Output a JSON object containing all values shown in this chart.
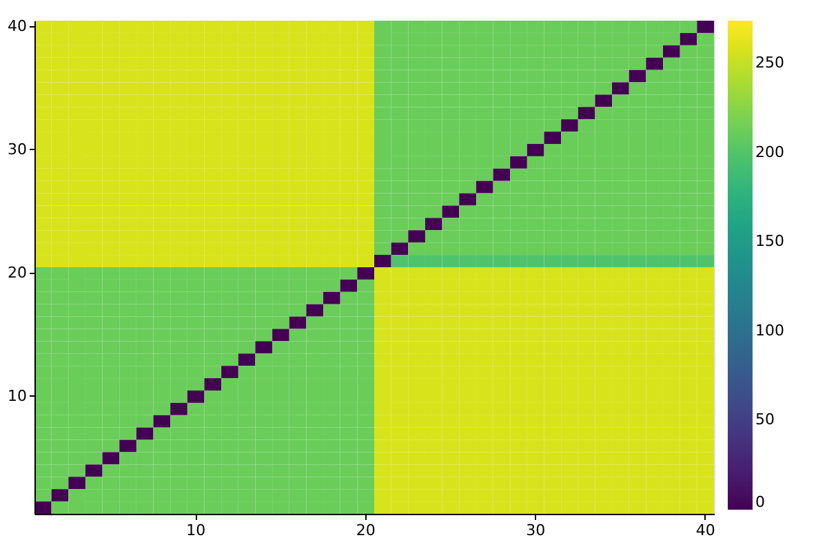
{
  "chart_data": {
    "type": "heatmap",
    "categories": [
      null,
      null,
      null,
      null,
      null,
      null,
      null,
      null,
      null,
      "10",
      null,
      null,
      null,
      null,
      null,
      null,
      null,
      null,
      null,
      "20",
      null,
      null,
      null,
      null,
      null,
      null,
      null,
      null,
      null,
      "30",
      null,
      null,
      null,
      null,
      null,
      null,
      null,
      null,
      null,
      "40"
    ],
    "y_categories": [
      "40",
      null,
      null,
      null,
      null,
      null,
      null,
      null,
      null,
      null,
      "30",
      null,
      null,
      null,
      null,
      null,
      null,
      null,
      null,
      null,
      "20",
      null,
      null,
      null,
      null,
      null,
      null,
      null,
      null,
      null,
      "10",
      null,
      null,
      null,
      null,
      null,
      null,
      null,
      null,
      null
    ],
    "clim": [
      0,
      274
    ],
    "cticks": [
      0,
      50,
      100,
      150,
      200,
      250
    ],
    "cells": [
      [
        258,
        258,
        258,
        258,
        258,
        258,
        258,
        258,
        258,
        258,
        258,
        258,
        258,
        258,
        258,
        258,
        258,
        258,
        258,
        258,
        212,
        212,
        212,
        212,
        212,
        212,
        212,
        212,
        212,
        212,
        212,
        212,
        212,
        212,
        212,
        212,
        212,
        212,
        212,
        0
      ],
      [
        258,
        258,
        258,
        258,
        258,
        258,
        258,
        258,
        258,
        258,
        258,
        258,
        258,
        258,
        258,
        258,
        258,
        258,
        258,
        258,
        212,
        212,
        212,
        212,
        212,
        212,
        212,
        212,
        212,
        212,
        212,
        212,
        212,
        212,
        212,
        212,
        212,
        212,
        0,
        212
      ],
      [
        258,
        258,
        258,
        258,
        258,
        258,
        258,
        258,
        258,
        258,
        258,
        258,
        258,
        258,
        258,
        258,
        258,
        258,
        258,
        258,
        212,
        212,
        212,
        212,
        212,
        212,
        212,
        212,
        212,
        212,
        212,
        212,
        212,
        212,
        212,
        212,
        212,
        0,
        212,
        212
      ],
      [
        258,
        258,
        258,
        258,
        258,
        258,
        258,
        258,
        258,
        258,
        258,
        258,
        258,
        258,
        258,
        258,
        258,
        258,
        258,
        258,
        212,
        212,
        212,
        212,
        212,
        212,
        212,
        212,
        212,
        212,
        212,
        212,
        212,
        212,
        212,
        212,
        0,
        212,
        212,
        212
      ],
      [
        258,
        258,
        258,
        258,
        258,
        258,
        258,
        258,
        258,
        258,
        258,
        258,
        258,
        258,
        258,
        258,
        258,
        258,
        258,
        258,
        212,
        212,
        212,
        212,
        212,
        212,
        212,
        212,
        212,
        212,
        212,
        212,
        212,
        212,
        212,
        0,
        212,
        212,
        212,
        212
      ],
      [
        258,
        258,
        258,
        258,
        258,
        258,
        258,
        258,
        258,
        258,
        258,
        258,
        258,
        258,
        258,
        258,
        258,
        258,
        258,
        258,
        212,
        212,
        212,
        212,
        212,
        212,
        212,
        212,
        212,
        212,
        212,
        212,
        212,
        212,
        0,
        212,
        212,
        212,
        212,
        212
      ],
      [
        258,
        258,
        258,
        258,
        258,
        258,
        258,
        258,
        258,
        258,
        258,
        258,
        258,
        258,
        258,
        258,
        258,
        258,
        258,
        258,
        212,
        212,
        212,
        212,
        212,
        212,
        212,
        212,
        212,
        212,
        212,
        212,
        212,
        0,
        212,
        212,
        212,
        212,
        212,
        212
      ],
      [
        258,
        258,
        258,
        258,
        258,
        258,
        258,
        258,
        258,
        258,
        258,
        258,
        258,
        258,
        258,
        258,
        258,
        258,
        258,
        258,
        212,
        212,
        212,
        212,
        212,
        212,
        212,
        212,
        212,
        212,
        212,
        212,
        0,
        212,
        212,
        212,
        212,
        212,
        212,
        212
      ],
      [
        258,
        258,
        258,
        258,
        258,
        258,
        258,
        258,
        258,
        258,
        258,
        258,
        258,
        258,
        258,
        258,
        258,
        258,
        258,
        258,
        212,
        212,
        212,
        212,
        212,
        212,
        212,
        212,
        212,
        212,
        212,
        0,
        212,
        212,
        212,
        212,
        212,
        212,
        212,
        212
      ],
      [
        258,
        258,
        258,
        258,
        258,
        258,
        258,
        258,
        258,
        258,
        258,
        258,
        258,
        258,
        258,
        258,
        258,
        258,
        258,
        258,
        212,
        212,
        212,
        212,
        212,
        212,
        212,
        212,
        212,
        212,
        0,
        212,
        212,
        212,
        212,
        212,
        212,
        212,
        212,
        212
      ],
      [
        258,
        258,
        258,
        258,
        258,
        258,
        258,
        258,
        258,
        258,
        258,
        258,
        258,
        258,
        258,
        258,
        258,
        258,
        258,
        258,
        212,
        212,
        212,
        212,
        212,
        212,
        212,
        212,
        212,
        0,
        212,
        212,
        212,
        212,
        212,
        212,
        212,
        212,
        212,
        212
      ],
      [
        258,
        258,
        258,
        258,
        258,
        258,
        258,
        258,
        258,
        258,
        258,
        258,
        258,
        258,
        258,
        258,
        258,
        258,
        258,
        258,
        212,
        212,
        212,
        212,
        212,
        212,
        212,
        212,
        0,
        212,
        212,
        212,
        212,
        212,
        212,
        212,
        212,
        212,
        212,
        212
      ],
      [
        258,
        258,
        258,
        258,
        258,
        258,
        258,
        258,
        258,
        258,
        258,
        258,
        258,
        258,
        258,
        258,
        258,
        258,
        258,
        258,
        212,
        212,
        212,
        212,
        212,
        212,
        212,
        0,
        212,
        212,
        212,
        212,
        212,
        212,
        212,
        212,
        212,
        212,
        212,
        212
      ],
      [
        258,
        258,
        258,
        258,
        258,
        258,
        258,
        258,
        258,
        258,
        258,
        258,
        258,
        258,
        258,
        258,
        258,
        258,
        258,
        258,
        212,
        212,
        212,
        212,
        212,
        212,
        0,
        212,
        212,
        212,
        212,
        212,
        212,
        212,
        212,
        212,
        212,
        212,
        212,
        212
      ],
      [
        258,
        258,
        258,
        258,
        258,
        258,
        258,
        258,
        258,
        258,
        258,
        258,
        258,
        258,
        258,
        258,
        258,
        258,
        258,
        258,
        212,
        212,
        212,
        212,
        212,
        0,
        212,
        212,
        212,
        212,
        212,
        212,
        212,
        212,
        212,
        212,
        212,
        212,
        212,
        212
      ],
      [
        258,
        258,
        258,
        258,
        258,
        258,
        258,
        258,
        258,
        258,
        258,
        258,
        258,
        258,
        258,
        258,
        258,
        258,
        258,
        258,
        212,
        212,
        212,
        212,
        0,
        212,
        212,
        212,
        212,
        212,
        212,
        212,
        212,
        212,
        212,
        212,
        212,
        212,
        212,
        212
      ],
      [
        258,
        258,
        258,
        258,
        258,
        258,
        258,
        258,
        258,
        258,
        258,
        258,
        258,
        258,
        258,
        258,
        258,
        258,
        258,
        258,
        212,
        212,
        212,
        0,
        212,
        212,
        212,
        212,
        212,
        212,
        212,
        212,
        212,
        212,
        212,
        212,
        212,
        212,
        212,
        212
      ],
      [
        258,
        258,
        258,
        258,
        258,
        258,
        258,
        258,
        258,
        258,
        258,
        258,
        258,
        258,
        258,
        258,
        258,
        258,
        258,
        258,
        212,
        212,
        0,
        212,
        212,
        212,
        212,
        212,
        212,
        212,
        212,
        212,
        212,
        212,
        212,
        212,
        212,
        212,
        212,
        212
      ],
      [
        258,
        258,
        258,
        258,
        258,
        258,
        258,
        258,
        258,
        258,
        258,
        258,
        258,
        258,
        258,
        258,
        258,
        258,
        258,
        258,
        212,
        0,
        212,
        212,
        212,
        212,
        212,
        212,
        212,
        212,
        212,
        212,
        212,
        212,
        212,
        212,
        212,
        212,
        212,
        212
      ],
      [
        258,
        258,
        258,
        258,
        258,
        258,
        258,
        258,
        258,
        258,
        258,
        258,
        258,
        258,
        258,
        258,
        258,
        258,
        258,
        258,
        0,
        198,
        198,
        198,
        198,
        198,
        198,
        198,
        198,
        198,
        198,
        198,
        198,
        198,
        198,
        198,
        198,
        198,
        198,
        198
      ],
      [
        212,
        212,
        212,
        212,
        212,
        212,
        212,
        212,
        212,
        212,
        212,
        212,
        212,
        212,
        212,
        212,
        212,
        212,
        212,
        0,
        258,
        258,
        258,
        258,
        258,
        258,
        258,
        258,
        258,
        258,
        258,
        258,
        258,
        258,
        258,
        258,
        258,
        258,
        258,
        258
      ],
      [
        212,
        212,
        212,
        212,
        212,
        212,
        212,
        212,
        212,
        212,
        212,
        212,
        212,
        212,
        212,
        212,
        212,
        212,
        0,
        212,
        258,
        258,
        258,
        258,
        258,
        258,
        258,
        258,
        258,
        258,
        258,
        258,
        258,
        258,
        258,
        258,
        258,
        258,
        258,
        258
      ],
      [
        212,
        212,
        212,
        212,
        212,
        212,
        212,
        212,
        212,
        212,
        212,
        212,
        212,
        212,
        212,
        212,
        212,
        0,
        212,
        212,
        258,
        258,
        258,
        258,
        258,
        258,
        258,
        258,
        258,
        258,
        258,
        258,
        258,
        258,
        258,
        258,
        258,
        258,
        258,
        258
      ],
      [
        212,
        212,
        212,
        212,
        212,
        212,
        212,
        212,
        212,
        212,
        212,
        212,
        212,
        212,
        212,
        212,
        0,
        212,
        212,
        212,
        258,
        258,
        258,
        258,
        258,
        258,
        258,
        258,
        258,
        258,
        258,
        258,
        258,
        258,
        258,
        258,
        258,
        258,
        258,
        258
      ],
      [
        212,
        212,
        212,
        212,
        212,
        212,
        212,
        212,
        212,
        212,
        212,
        212,
        212,
        212,
        212,
        0,
        212,
        212,
        212,
        212,
        258,
        258,
        258,
        258,
        258,
        258,
        258,
        258,
        258,
        258,
        258,
        258,
        258,
        258,
        258,
        258,
        258,
        258,
        258,
        258
      ],
      [
        212,
        212,
        212,
        212,
        212,
        212,
        212,
        212,
        212,
        212,
        212,
        212,
        212,
        212,
        0,
        212,
        212,
        212,
        212,
        212,
        258,
        258,
        258,
        258,
        258,
        258,
        258,
        258,
        258,
        258,
        258,
        258,
        258,
        258,
        258,
        258,
        258,
        258,
        258,
        258
      ],
      [
        212,
        212,
        212,
        212,
        212,
        212,
        212,
        212,
        212,
        212,
        212,
        212,
        212,
        0,
        212,
        212,
        212,
        212,
        212,
        212,
        258,
        258,
        258,
        258,
        258,
        258,
        258,
        258,
        258,
        258,
        258,
        258,
        258,
        258,
        258,
        258,
        258,
        258,
        258,
        258
      ],
      [
        212,
        212,
        212,
        212,
        212,
        212,
        212,
        212,
        212,
        212,
        212,
        212,
        0,
        212,
        212,
        212,
        212,
        212,
        212,
        212,
        258,
        258,
        258,
        258,
        258,
        258,
        258,
        258,
        258,
        258,
        258,
        258,
        258,
        258,
        258,
        258,
        258,
        258,
        258,
        258
      ],
      [
        212,
        212,
        212,
        212,
        212,
        212,
        212,
        212,
        212,
        212,
        212,
        0,
        212,
        212,
        212,
        212,
        212,
        212,
        212,
        212,
        258,
        258,
        258,
        258,
        258,
        258,
        258,
        258,
        258,
        258,
        258,
        258,
        258,
        258,
        258,
        258,
        258,
        258,
        258,
        258
      ],
      [
        212,
        212,
        212,
        212,
        212,
        212,
        212,
        212,
        212,
        212,
        0,
        212,
        212,
        212,
        212,
        212,
        212,
        212,
        212,
        212,
        258,
        258,
        258,
        258,
        258,
        258,
        258,
        258,
        258,
        258,
        258,
        258,
        258,
        258,
        258,
        258,
        258,
        258,
        258,
        258
      ],
      [
        212,
        212,
        212,
        212,
        212,
        212,
        212,
        212,
        212,
        0,
        212,
        212,
        212,
        212,
        212,
        212,
        212,
        212,
        212,
        212,
        258,
        258,
        258,
        258,
        258,
        258,
        258,
        258,
        258,
        258,
        258,
        258,
        258,
        258,
        258,
        258,
        258,
        258,
        258,
        258
      ],
      [
        212,
        212,
        212,
        212,
        212,
        212,
        212,
        212,
        0,
        212,
        212,
        212,
        212,
        212,
        212,
        212,
        212,
        212,
        212,
        212,
        258,
        258,
        258,
        258,
        258,
        258,
        258,
        258,
        258,
        258,
        258,
        258,
        258,
        258,
        258,
        258,
        258,
        258,
        258,
        258
      ],
      [
        212,
        212,
        212,
        212,
        212,
        212,
        212,
        0,
        212,
        212,
        212,
        212,
        212,
        212,
        212,
        212,
        212,
        212,
        212,
        212,
        258,
        258,
        258,
        258,
        258,
        258,
        258,
        258,
        258,
        258,
        258,
        258,
        258,
        258,
        258,
        258,
        258,
        258,
        258,
        258
      ],
      [
        212,
        212,
        212,
        212,
        212,
        212,
        0,
        212,
        212,
        212,
        212,
        212,
        212,
        212,
        212,
        212,
        212,
        212,
        212,
        212,
        258,
        258,
        258,
        258,
        258,
        258,
        258,
        258,
        258,
        258,
        258,
        258,
        258,
        258,
        258,
        258,
        258,
        258,
        258,
        258
      ],
      [
        212,
        212,
        212,
        212,
        212,
        0,
        212,
        212,
        212,
        212,
        212,
        212,
        212,
        212,
        212,
        212,
        212,
        212,
        212,
        212,
        258,
        258,
        258,
        258,
        258,
        258,
        258,
        258,
        258,
        258,
        258,
        258,
        258,
        258,
        258,
        258,
        258,
        258,
        258,
        258
      ],
      [
        212,
        212,
        212,
        212,
        0,
        212,
        212,
        212,
        212,
        212,
        212,
        212,
        212,
        212,
        212,
        212,
        212,
        212,
        212,
        212,
        258,
        258,
        258,
        258,
        258,
        258,
        258,
        258,
        258,
        258,
        258,
        258,
        258,
        258,
        258,
        258,
        258,
        258,
        258,
        258
      ],
      [
        212,
        212,
        212,
        0,
        212,
        212,
        212,
        212,
        212,
        212,
        212,
        212,
        212,
        212,
        212,
        212,
        212,
        212,
        212,
        212,
        258,
        258,
        258,
        258,
        258,
        258,
        258,
        258,
        258,
        258,
        258,
        258,
        258,
        258,
        258,
        258,
        258,
        258,
        258,
        258
      ],
      [
        212,
        212,
        0,
        212,
        212,
        212,
        212,
        212,
        212,
        212,
        212,
        212,
        212,
        212,
        212,
        212,
        212,
        212,
        212,
        212,
        258,
        258,
        258,
        258,
        258,
        258,
        258,
        258,
        258,
        258,
        258,
        258,
        258,
        258,
        258,
        258,
        258,
        258,
        258,
        258
      ],
      [
        212,
        0,
        212,
        212,
        212,
        212,
        212,
        212,
        212,
        212,
        212,
        212,
        212,
        212,
        212,
        212,
        212,
        212,
        212,
        212,
        258,
        258,
        258,
        258,
        258,
        258,
        258,
        258,
        258,
        258,
        258,
        258,
        258,
        258,
        258,
        258,
        258,
        258,
        258,
        258
      ],
      [
        0,
        212,
        212,
        212,
        212,
        212,
        212,
        212,
        212,
        212,
        212,
        212,
        212,
        212,
        212,
        212,
        212,
        212,
        212,
        212,
        258,
        258,
        258,
        258,
        258,
        258,
        258,
        258,
        258,
        258,
        258,
        258,
        258,
        258,
        258,
        258,
        258,
        258,
        258,
        258
      ]
    ]
  }
}
